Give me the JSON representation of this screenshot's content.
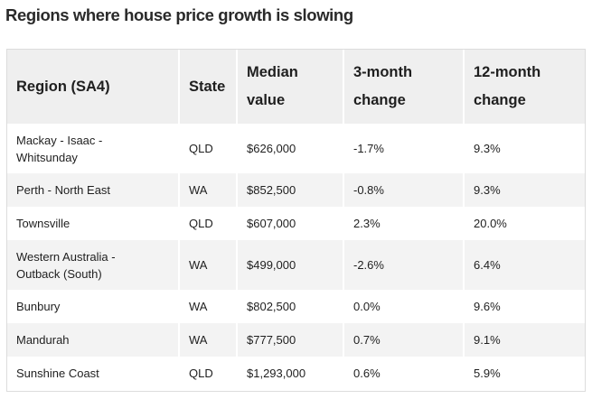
{
  "title": "Regions where house price growth is slowing",
  "table": {
    "headers": {
      "region": "Region (SA4)",
      "state": "State",
      "median_line1": "Median",
      "median_line2": "value",
      "three_line1": "3-month",
      "three_line2": "change",
      "twelve_line1": "12-month",
      "twelve_line2": "change"
    },
    "rows": [
      {
        "region_line1": "Mackay - Isaac -",
        "region_line2": "Whitsunday",
        "state": "QLD",
        "median": "$626,000",
        "three_month": "-1.7%",
        "twelve_month": "9.3%"
      },
      {
        "region_line1": "Perth - North East",
        "region_line2": "",
        "state": "WA",
        "median": "$852,500",
        "three_month": "-0.8%",
        "twelve_month": "9.3%"
      },
      {
        "region_line1": "Townsville",
        "region_line2": "",
        "state": "QLD",
        "median": "$607,000",
        "three_month": "2.3%",
        "twelve_month": "20.0%"
      },
      {
        "region_line1": "Western Australia -",
        "region_line2": "Outback (South)",
        "state": "WA",
        "median": "$499,000",
        "three_month": "-2.6%",
        "twelve_month": "6.4%"
      },
      {
        "region_line1": "Bunbury",
        "region_line2": "",
        "state": "WA",
        "median": "$802,500",
        "three_month": "0.0%",
        "twelve_month": "9.6%"
      },
      {
        "region_line1": "Mandurah",
        "region_line2": "",
        "state": "WA",
        "median": "$777,500",
        "three_month": "0.7%",
        "twelve_month": "9.1%"
      },
      {
        "region_line1": "Sunshine Coast",
        "region_line2": "",
        "state": "QLD",
        "median": "$1,293,000",
        "three_month": "0.6%",
        "twelve_month": "5.9%"
      }
    ]
  }
}
